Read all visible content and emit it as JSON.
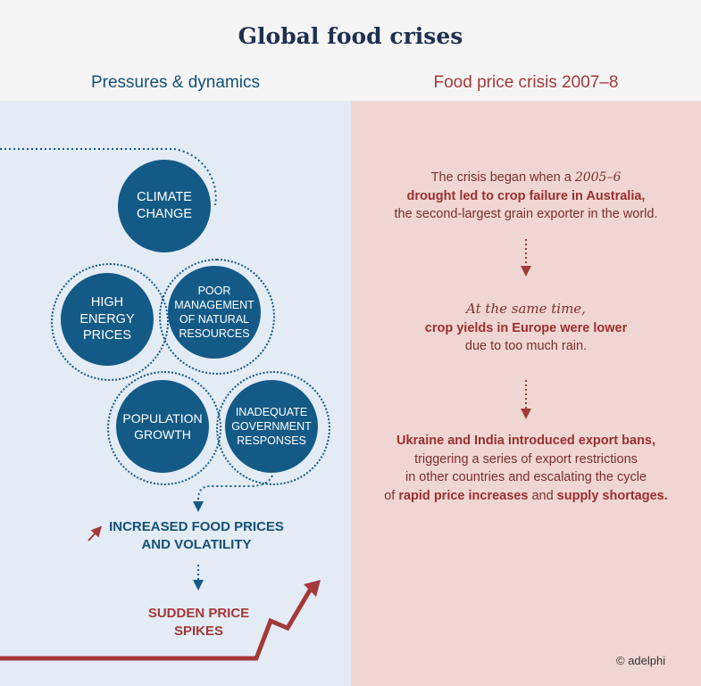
{
  "title": "Global food crises",
  "left_heading": "Pressures & dynamics",
  "right_heading": "Food price crisis 2007–8",
  "pressures": {
    "climate": "CLIMATE CHANGE",
    "energy": "HIGH ENERGY PRICES",
    "resources": "POOR MANAGEMENT OF NATURAL RESOURCES",
    "population": "POPULATION GROWTH",
    "government": "INADEQUATE GOVERNMENT RESPONSES"
  },
  "outcome1_line1": "INCREASED FOOD PRICES",
  "outcome1_line2": "AND VOLATILITY",
  "outcome2_line1": "SUDDEN PRICE",
  "outcome2_line2": "SPIKES",
  "crisis": {
    "p1_a": "The crisis began when a ",
    "p1_years": "2005–6",
    "p1_b": "drought led to crop failure in Australia,",
    "p1_c": "the second-largest grain exporter in the world.",
    "p2_a": "At the same time,",
    "p2_b": "crop yields in Europe were lower",
    "p2_c": "due to too much rain.",
    "p3_a": "Ukraine and India introduced export bans,",
    "p3_b": "triggering a series of export restrictions",
    "p3_c": "in other countries and escalating the cycle",
    "p3_d1": "of ",
    "p3_d2": "rapid price increases",
    "p3_d3": " and ",
    "p3_d4": "supply shortages."
  },
  "credit": "© adelphi",
  "colors": {
    "navy": "#145a86",
    "red": "#a3393a",
    "left_bg": "#e3ebf4",
    "right_bg": "#f0d6d2"
  }
}
